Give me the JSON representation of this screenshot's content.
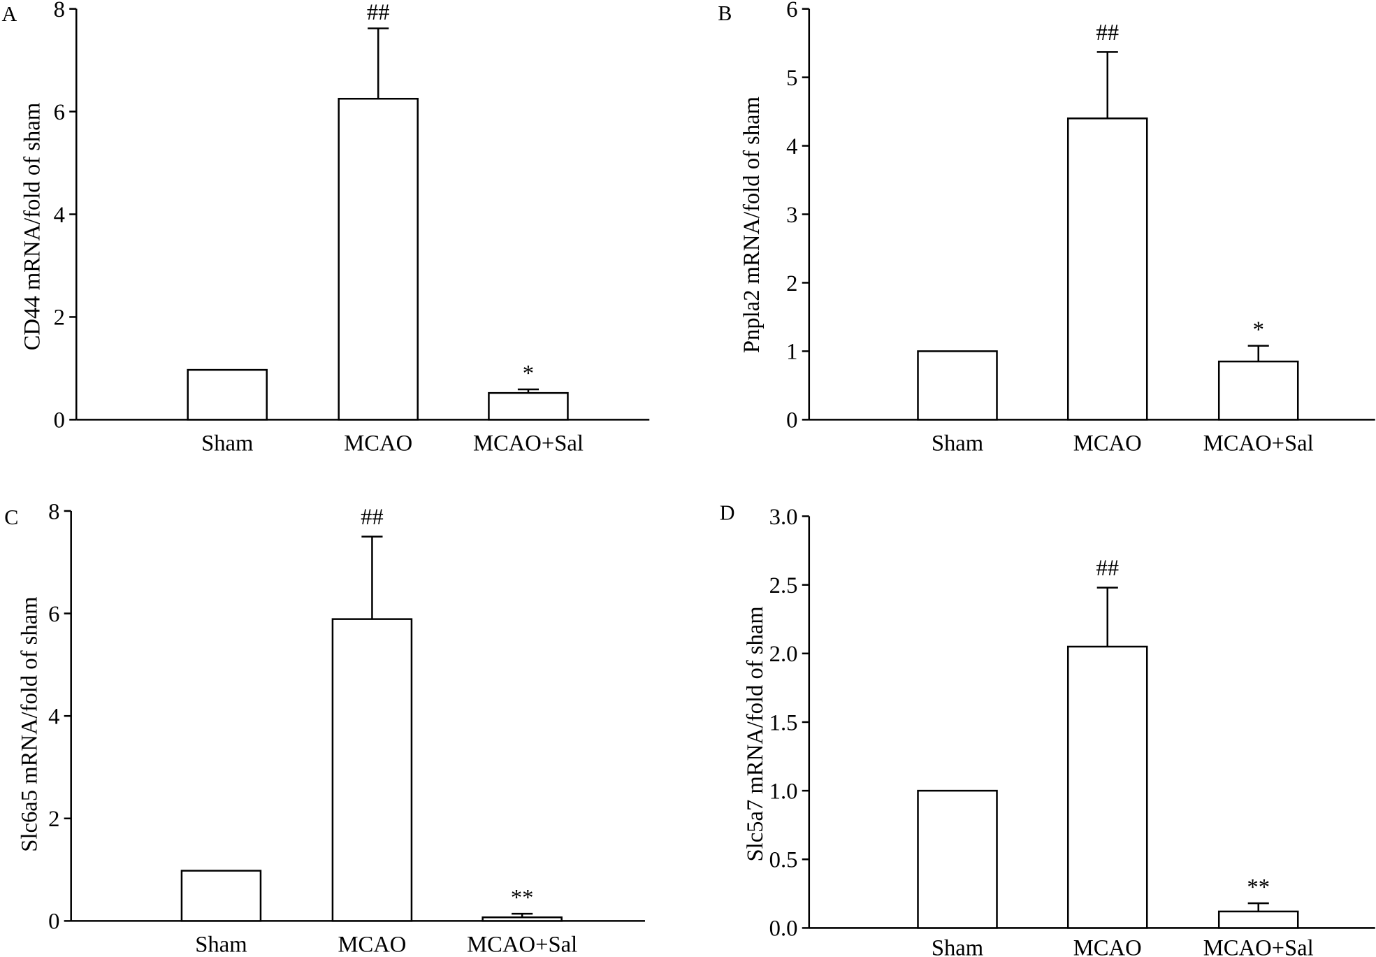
{
  "colors": {
    "bar_fill": "#ffffff",
    "bar_edge": "#000000"
  },
  "chart_data": [
    {
      "panel": "A",
      "type": "bar",
      "categories": [
        "Sham",
        "MCAO",
        "MCAO+Sal"
      ],
      "values": [
        0.97,
        6.25,
        0.52
      ],
      "errors": [
        0,
        1.37,
        0.07
      ],
      "annotations": [
        null,
        "##",
        "*"
      ],
      "ylabel": "CD44 mRNA/fold of sham",
      "ylim": [
        0,
        8
      ],
      "yticks": [
        0,
        2,
        4,
        6,
        8
      ],
      "ytick_labels": [
        "0",
        "2",
        "4",
        "6",
        "8"
      ],
      "grid": false
    },
    {
      "panel": "B",
      "type": "bar",
      "categories": [
        "Sham",
        "MCAO",
        "MCAO+Sal"
      ],
      "values": [
        1.0,
        4.4,
        0.85
      ],
      "errors": [
        0,
        0.97,
        0.23
      ],
      "annotations": [
        null,
        "##",
        "*"
      ],
      "ylabel": "Pnpla2 mRNA/fold of sham",
      "ylim": [
        0,
        6
      ],
      "yticks": [
        0,
        1,
        2,
        3,
        4,
        5,
        6
      ],
      "ytick_labels": [
        "0",
        "1",
        "2",
        "3",
        "4",
        "5",
        "6"
      ],
      "grid": false
    },
    {
      "panel": "C",
      "type": "bar",
      "categories": [
        "Sham",
        "MCAO",
        "MCAO+Sal"
      ],
      "values": [
        0.98,
        5.89,
        0.07
      ],
      "errors": [
        0,
        1.61,
        0.07
      ],
      "annotations": [
        null,
        "##",
        "**"
      ],
      "ylabel": "Slc6a5 mRNA/fold of sham",
      "ylim": [
        0,
        8
      ],
      "yticks": [
        0,
        2,
        4,
        6,
        8
      ],
      "ytick_labels": [
        "0",
        "2",
        "4",
        "6",
        "8"
      ],
      "grid": false
    },
    {
      "panel": "D",
      "type": "bar",
      "categories": [
        "Sham",
        "MCAO",
        "MCAO+Sal"
      ],
      "values": [
        1.0,
        2.05,
        0.12
      ],
      "errors": [
        0,
        0.43,
        0.06
      ],
      "annotations": [
        null,
        "##",
        "**"
      ],
      "ylabel": "Slc5a7 mRNA/fold of sham",
      "ylim": [
        0,
        3.0
      ],
      "yticks": [
        0,
        0.5,
        1.0,
        1.5,
        2.0,
        2.5,
        3.0
      ],
      "ytick_labels": [
        "0.0",
        "0.5",
        "1.0",
        "1.5",
        "2.0",
        "2.5",
        "3.0"
      ],
      "grid": false
    }
  ]
}
